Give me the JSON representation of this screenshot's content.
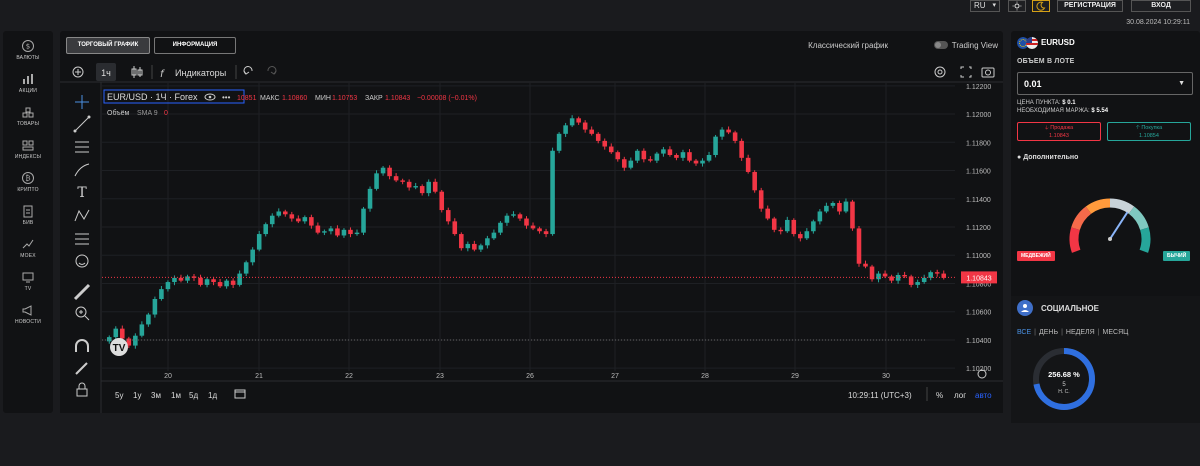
{
  "header": {
    "language": "RU",
    "register_label": "РЕГИСТРАЦИЯ",
    "login_label": "ВХОД",
    "datetime": "30.08.2024 10:29:11"
  },
  "sidebar": {
    "items": [
      {
        "label": "ВАЛЮТЫ",
        "icon": "currency-icon"
      },
      {
        "label": "АКЦИИ",
        "icon": "stocks-icon"
      },
      {
        "label": "ТОВАРЫ",
        "icon": "commodities-icon"
      },
      {
        "label": "ИНДЕКСЫ",
        "icon": "indices-icon"
      },
      {
        "label": "КРИПТО",
        "icon": "crypto-icon"
      },
      {
        "label": "БИВ",
        "icon": "clipboard-icon"
      },
      {
        "label": "MOEX",
        "icon": "moex-icon"
      },
      {
        "label": "TV",
        "icon": "tv-icon"
      },
      {
        "label": "НОВОСТИ",
        "icon": "megaphone-icon"
      }
    ]
  },
  "tabs": {
    "trading_chart": "ТОРГОВЫЙ ГРАФИК",
    "information": "ИНФОРМАЦИЯ",
    "classic_chart": "Классический график",
    "trading_view": "Trading View"
  },
  "chart_toolbar": {
    "interval": "1ч",
    "indicators": "Индикаторы"
  },
  "legend": {
    "symbol": "EUR/USD · 1Ч · Forex",
    "open_partial": "10851",
    "high_label": "МАКС",
    "high_value": "1.10860",
    "low_label": "МИН",
    "low_value": "1.10753",
    "close_label": "ЗАКР",
    "close_value": "1.10843",
    "change": "−0.00008 (−0.01%)",
    "volume_label": "Объём",
    "volume_sma": "SMA 9",
    "volume_value": "0"
  },
  "bottom_bar": {
    "ranges": [
      "5y",
      "1y",
      "3м",
      "1м",
      "5д",
      "1д"
    ],
    "time": "10:29:11 (UTC+3)",
    "percent": "%",
    "log": "лог",
    "auto": "авто"
  },
  "chart_data": {
    "type": "candlestick",
    "symbol": "EUR/USD",
    "interval": "1H",
    "y_ticks": [
      "1.12200",
      "1.12000",
      "1.11800",
      "1.11600",
      "1.11400",
      "1.11200",
      "1.11000",
      "1.10800",
      "1.10600",
      "1.10400",
      "1.10200"
    ],
    "ylim": [
      1.1018,
      1.1222
    ],
    "x_ticks": [
      "20",
      "21",
      "22",
      "23",
      "26",
      "27",
      "28",
      "29",
      "30"
    ],
    "last_price": "1.10843",
    "up_color": "#26a69a",
    "down_color": "#f23645",
    "closes": [
      1.1042,
      1.1048,
      1.1041,
      1.1036,
      1.1043,
      1.1051,
      1.1058,
      1.1069,
      1.1076,
      1.1081,
      1.1084,
      1.1082,
      1.1085,
      1.1084,
      1.1079,
      1.1083,
      1.1081,
      1.1078,
      1.1082,
      1.1079,
      1.1087,
      1.1095,
      1.1104,
      1.1115,
      1.1122,
      1.1128,
      1.1131,
      1.1129,
      1.1126,
      1.1124,
      1.1127,
      1.1121,
      1.1116,
      1.1117,
      1.1119,
      1.1114,
      1.1118,
      1.1115,
      1.1116,
      1.1133,
      1.1147,
      1.1158,
      1.1162,
      1.1156,
      1.1153,
      1.1152,
      1.1148,
      1.1149,
      1.1144,
      1.1152,
      1.1145,
      1.1132,
      1.1124,
      1.1115,
      1.1105,
      1.1108,
      1.1104,
      1.1107,
      1.1112,
      1.1116,
      1.1123,
      1.1128,
      1.1129,
      1.1126,
      1.1121,
      1.1119,
      1.1117,
      1.1115,
      1.1174,
      1.1186,
      1.1192,
      1.1197,
      1.1194,
      1.1189,
      1.1186,
      1.1181,
      1.1177,
      1.1173,
      1.1168,
      1.1162,
      1.1167,
      1.1174,
      1.1168,
      1.1167,
      1.1172,
      1.1175,
      1.1171,
      1.1169,
      1.1173,
      1.1167,
      1.1165,
      1.1167,
      1.1171,
      1.1184,
      1.1189,
      1.1187,
      1.1181,
      1.1169,
      1.1159,
      1.1146,
      1.1133,
      1.1126,
      1.1118,
      1.1117,
      1.1125,
      1.1115,
      1.1112,
      1.1117,
      1.1124,
      1.1131,
      1.1135,
      1.1137,
      1.1131,
      1.1138,
      1.1119,
      1.1094,
      1.1092,
      1.1083,
      1.1087,
      1.1085,
      1.1082,
      1.1086,
      1.1085,
      1.1079,
      1.1081,
      1.1084,
      1.1088,
      1.1087,
      1.1084
    ]
  },
  "panel": {
    "pair": "EURUSD",
    "volume_label": "ОБЪЕМ В ЛОТЕ",
    "volume_value": "0.01",
    "point_price_label": "ЦЕНА ПУНКТА:",
    "point_price_value": "$ 0.1",
    "margin_label": "НЕОБХОДИМАЯ МАРЖА:",
    "margin_value": "$ 5.54",
    "sell_label": "Продажа",
    "sell_price": "1.10843",
    "buy_label": "Покупка",
    "buy_price": "1.10854",
    "additional_label": "Дополнительно",
    "bear_label": "МЕДВЕЖИЙ",
    "bull_label": "БЫЧИЙ",
    "sentiment_value": 0.65
  },
  "social": {
    "title": "СОЦИАЛЬНОЕ",
    "periods": [
      "ВСЕ",
      "ДЕНЬ",
      "НЕДЕЛЯ",
      "МЕСЯЦ"
    ],
    "percent": "256.68 %",
    "count": "5",
    "unit": "Н. С.",
    "ring_fill": 0.72
  }
}
